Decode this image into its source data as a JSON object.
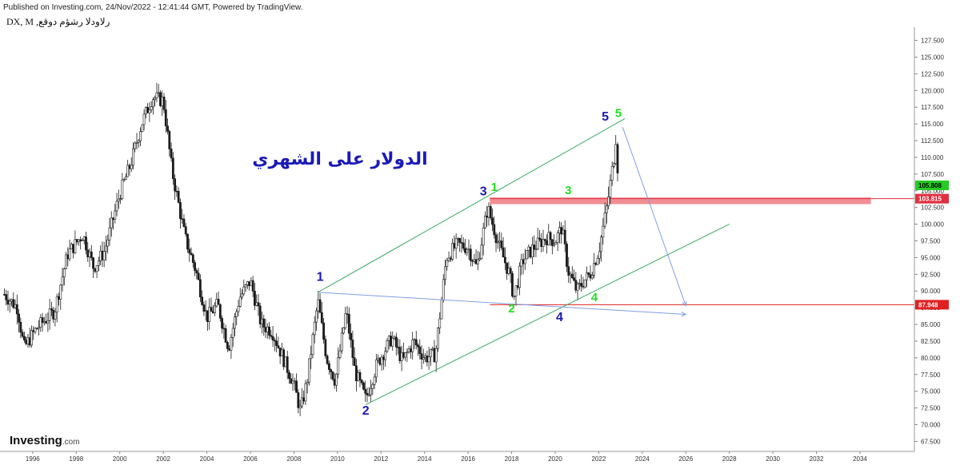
{
  "header": {
    "published": "Published on Investing.com, 24/Nov/2022 - 12:41:44 GMT, Powered by TradingView.",
    "symbol": "DX, M ,رلاودلا رشؤم دوقع"
  },
  "brand": {
    "name": "Investing",
    "suffix": ".com"
  },
  "chart_data": {
    "type": "candlestick",
    "title": "الدولار على الشهري",
    "xlabel": "",
    "ylabel": "",
    "ylim": [
      66,
      129
    ],
    "xlim": [
      1994.5,
      2036.5
    ],
    "x_ticks": [
      "1996",
      "1998",
      "2000",
      "2002",
      "2004",
      "2006",
      "2008",
      "2010",
      "2012",
      "2014",
      "2016",
      "2018",
      "2020",
      "2022",
      "2024",
      "2026",
      "2028",
      "2030",
      "2032",
      "2034"
    ],
    "y_ticks": [
      "67.500",
      "70.000",
      "72.500",
      "75.000",
      "77.500",
      "80.000",
      "82.500",
      "85.000",
      "87.500",
      "90.000",
      "92.500",
      "95.000",
      "97.500",
      "100.000",
      "102.500",
      "105.000",
      "107.500",
      "110.000",
      "112.500",
      "115.000",
      "117.500",
      "120.000",
      "122.500",
      "125.000",
      "127.500"
    ],
    "price_path": [
      [
        1994.7,
        89.5
      ],
      [
        1995.3,
        87.5
      ],
      [
        1995.6,
        81.5
      ],
      [
        1996.2,
        84.5
      ],
      [
        1997.0,
        87.0
      ],
      [
        1997.6,
        95.5
      ],
      [
        1998.3,
        98.5
      ],
      [
        1998.8,
        93.5
      ],
      [
        1999.3,
        96.0
      ],
      [
        2000.0,
        104.5
      ],
      [
        2000.5,
        109.0
      ],
      [
        2001.0,
        115.0
      ],
      [
        2001.5,
        119.0
      ],
      [
        2002.0,
        118.5
      ],
      [
        2002.4,
        108.0
      ],
      [
        2003.0,
        98.0
      ],
      [
        2003.5,
        93.0
      ],
      [
        2004.0,
        86.0
      ],
      [
        2004.5,
        88.0
      ],
      [
        2005.0,
        81.5
      ],
      [
        2005.5,
        89.0
      ],
      [
        2006.0,
        91.5
      ],
      [
        2006.5,
        85.0
      ],
      [
        2007.0,
        84.0
      ],
      [
        2007.5,
        80.0
      ],
      [
        2008.0,
        76.0
      ],
      [
        2008.3,
        72.0
      ],
      [
        2008.6,
        76.5
      ],
      [
        2009.1,
        88.5
      ],
      [
        2009.5,
        80.0
      ],
      [
        2009.9,
        76.5
      ],
      [
        2010.4,
        87.0
      ],
      [
        2010.8,
        78.0
      ],
      [
        2011.3,
        73.8
      ],
      [
        2011.8,
        79.0
      ],
      [
        2012.5,
        83.0
      ],
      [
        2013.0,
        79.5
      ],
      [
        2013.5,
        82.5
      ],
      [
        2014.0,
        80.0
      ],
      [
        2014.5,
        80.5
      ],
      [
        2015.0,
        95.0
      ],
      [
        2015.5,
        97.0
      ],
      [
        2016.0,
        96.5
      ],
      [
        2016.4,
        93.5
      ],
      [
        2016.9,
        102.5
      ],
      [
        2017.4,
        97.0
      ],
      [
        2017.9,
        92.5
      ],
      [
        2018.1,
        89.0
      ],
      [
        2018.5,
        94.5
      ],
      [
        2019.0,
        96.5
      ],
      [
        2019.6,
        98.0
      ],
      [
        2020.0,
        97.5
      ],
      [
        2020.3,
        99.5
      ],
      [
        2020.6,
        93.0
      ],
      [
        2021.0,
        90.0
      ],
      [
        2021.3,
        91.5
      ],
      [
        2021.6,
        92.5
      ],
      [
        2022.0,
        96.0
      ],
      [
        2022.4,
        103.0
      ],
      [
        2022.7,
        110.0
      ],
      [
        2022.8,
        113.5
      ],
      [
        2022.9,
        106.0
      ]
    ],
    "current_price": "105.808",
    "levels": [
      {
        "label": "103.815",
        "value": 103.815,
        "color": "#e03040"
      },
      {
        "label": "87.948",
        "value": 87.948,
        "color": "#e02020"
      }
    ],
    "channel_upper": [
      [
        2009.1,
        89.8
      ],
      [
        2023.2,
        115.8
      ]
    ],
    "channel_lower": [
      [
        2011.3,
        73.0
      ],
      [
        2028.0,
        100.0
      ]
    ],
    "blue_line_1": [
      [
        2009.1,
        89.8
      ],
      [
        2026.0,
        86.5
      ]
    ],
    "blue_line_2": [
      [
        2023.1,
        114.5
      ],
      [
        2026.0,
        87.8
      ]
    ],
    "resistance_zone": [
      2017.0,
      2034.5,
      103.0,
      104.0
    ],
    "wave_labels": [
      {
        "text": "1",
        "color": "blue",
        "x": 2009.2,
        "y": 91.5
      },
      {
        "text": "2",
        "color": "blue",
        "x": 2011.3,
        "y": 71.5
      },
      {
        "text": "3",
        "color": "blue",
        "x": 2016.7,
        "y": 104.3
      },
      {
        "text": "1",
        "color": "green",
        "x": 2017.2,
        "y": 105.0
      },
      {
        "text": "2",
        "color": "green",
        "x": 2018.0,
        "y": 86.8
      },
      {
        "text": "3",
        "color": "green",
        "x": 2020.6,
        "y": 104.5
      },
      {
        "text": "4",
        "color": "blue",
        "x": 2020.2,
        "y": 85.5
      },
      {
        "text": "4",
        "color": "green",
        "x": 2021.8,
        "y": 88.5
      },
      {
        "text": "5",
        "color": "blue",
        "x": 2022.3,
        "y": 115.5
      },
      {
        "text": "5",
        "color": "green",
        "x": 2022.9,
        "y": 116.0
      }
    ],
    "grid": false,
    "legend": "none",
    "colors": {
      "candle": "#1a1a1a",
      "channel": "#3aaa66",
      "projection": "#7f9fe6",
      "zone": "#f07a80",
      "current_price_tag": "#22cc22"
    }
  }
}
